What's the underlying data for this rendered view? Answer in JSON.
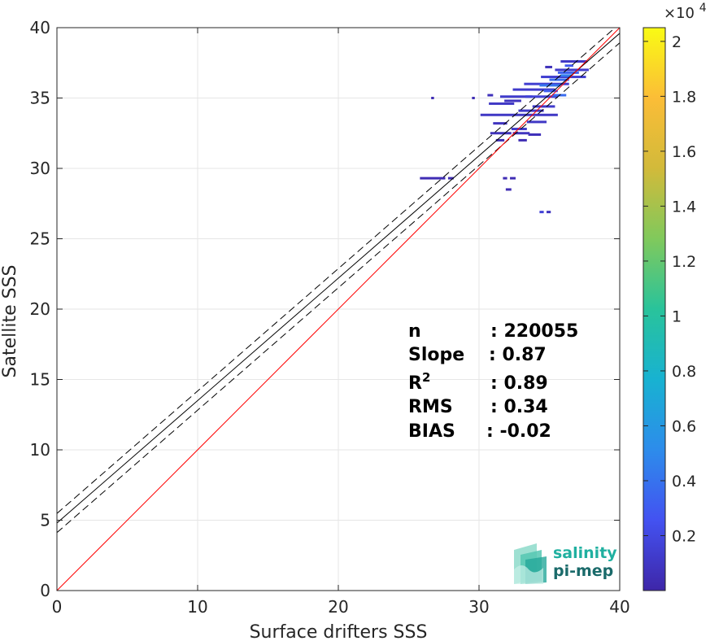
{
  "chart_data": {
    "type": "heatmap",
    "xlabel": "Surface drifters SSS",
    "ylabel": "Satellite SSS",
    "xlim": [
      0,
      40
    ],
    "ylim": [
      0,
      40
    ],
    "x_ticks": [
      "0",
      "10",
      "20",
      "30",
      "40"
    ],
    "y_ticks": [
      "0",
      "5",
      "10",
      "15",
      "20",
      "25",
      "30",
      "35",
      "40"
    ],
    "grid": true,
    "colorbar": {
      "range": [
        0,
        2.05
      ],
      "ticks": [
        "0.2",
        "0.4",
        "0.6",
        "0.8",
        "1",
        "1.2",
        "1.4",
        "1.6",
        "1.8",
        "2"
      ],
      "multiplier_base": "×10",
      "multiplier_exp": "4",
      "colormap": "parula",
      "colors": [
        "#3e26a8",
        "#4352f1",
        "#2d8ceb",
        "#18b2d1",
        "#29c39b",
        "#80c95c",
        "#d2ba3a",
        "#fbbd37",
        "#f9fb14"
      ]
    },
    "reference_line": {
      "slope": 1,
      "intercept": 0,
      "color": "#ff0000"
    },
    "fit_line": {
      "slope": 0.87,
      "intercept": 4.8,
      "color": "#000000"
    },
    "fit_bounds": [
      {
        "slope": 0.87,
        "intercept": 5.48,
        "color": "#000000",
        "dashed": true
      },
      {
        "slope": 0.87,
        "intercept": 4.12,
        "color": "#000000",
        "dashed": true
      }
    ],
    "density_segments": [
      {
        "x0": 25.8,
        "x1": 27.6,
        "y": 29.3,
        "level": 0.02
      },
      {
        "x0": 27.8,
        "x1": 28.2,
        "y": 29.3,
        "level": 0.02
      },
      {
        "x0": 31.7,
        "x1": 32.0,
        "y": 29.3,
        "level": 0.02
      },
      {
        "x0": 32.2,
        "x1": 32.6,
        "y": 29.3,
        "level": 0.02
      },
      {
        "x0": 31.9,
        "x1": 32.3,
        "y": 28.5,
        "level": 0.02
      },
      {
        "x0": 34.3,
        "x1": 34.6,
        "y": 26.9,
        "level": 0.08
      },
      {
        "x0": 34.8,
        "x1": 35.1,
        "y": 26.9,
        "level": 0.04
      },
      {
        "x0": 26.6,
        "x1": 26.8,
        "y": 35.0,
        "level": 0.02
      },
      {
        "x0": 29.5,
        "x1": 29.7,
        "y": 35.0,
        "level": 0.02
      },
      {
        "x0": 30.6,
        "x1": 31.0,
        "y": 35.2,
        "level": 0.03
      },
      {
        "x0": 31.5,
        "x1": 33.8,
        "y": 35.1,
        "level": 0.06
      },
      {
        "x0": 30.7,
        "x1": 32.5,
        "y": 34.6,
        "level": 0.05
      },
      {
        "x0": 31.8,
        "x1": 33.0,
        "y": 34.8,
        "level": 0.04
      },
      {
        "x0": 32.4,
        "x1": 35.4,
        "y": 35.6,
        "level": 0.06
      },
      {
        "x0": 33.2,
        "x1": 36.4,
        "y": 36.0,
        "level": 0.07
      },
      {
        "x0": 34.4,
        "x1": 37.6,
        "y": 36.5,
        "level": 0.07
      },
      {
        "x0": 35.4,
        "x1": 37.8,
        "y": 37.0,
        "level": 0.06
      },
      {
        "x0": 35.8,
        "x1": 37.7,
        "y": 37.6,
        "level": 0.05
      },
      {
        "x0": 34.7,
        "x1": 35.2,
        "y": 37.2,
        "level": 0.03
      },
      {
        "x0": 33.3,
        "x1": 35.6,
        "y": 35.1,
        "level": 0.08
      },
      {
        "x0": 33.8,
        "x1": 35.4,
        "y": 34.4,
        "level": 0.06
      },
      {
        "x0": 32.8,
        "x1": 34.6,
        "y": 34.1,
        "level": 0.05
      },
      {
        "x0": 30.1,
        "x1": 32.6,
        "y": 33.8,
        "level": 0.05
      },
      {
        "x0": 32.6,
        "x1": 35.6,
        "y": 33.8,
        "level": 0.05
      },
      {
        "x0": 33.4,
        "x1": 34.8,
        "y": 33.3,
        "level": 0.05
      },
      {
        "x0": 31.0,
        "x1": 32.0,
        "y": 33.2,
        "level": 0.04
      },
      {
        "x0": 32.3,
        "x1": 33.4,
        "y": 32.8,
        "level": 0.06
      },
      {
        "x0": 30.8,
        "x1": 32.3,
        "y": 32.5,
        "level": 0.03
      },
      {
        "x0": 32.4,
        "x1": 33.6,
        "y": 32.5,
        "level": 0.04
      },
      {
        "x0": 33.5,
        "x1": 34.4,
        "y": 32.4,
        "level": 0.03
      },
      {
        "x0": 31.2,
        "x1": 31.8,
        "y": 32.0,
        "level": 0.02
      },
      {
        "x0": 32.8,
        "x1": 33.4,
        "y": 32.0,
        "level": 0.02
      },
      {
        "x0": 34.3,
        "x1": 35.8,
        "y": 35.9,
        "level": 0.2
      },
      {
        "x0": 35.0,
        "x1": 36.4,
        "y": 36.3,
        "level": 0.18
      },
      {
        "x0": 35.6,
        "x1": 37.1,
        "y": 36.8,
        "level": 0.16
      },
      {
        "x0": 35.2,
        "x1": 36.2,
        "y": 35.2,
        "level": 0.18
      },
      {
        "x0": 34.6,
        "x1": 35.6,
        "y": 35.5,
        "level": 0.15
      },
      {
        "x0": 36.1,
        "x1": 36.7,
        "y": 37.3,
        "level": 0.14
      },
      {
        "x0": 35.8,
        "x1": 36.6,
        "y": 36.6,
        "level": 0.22
      }
    ],
    "stats": [
      {
        "label": "n",
        "value": ": 220055"
      },
      {
        "label": "Slope",
        "value": ": 0.87"
      },
      {
        "label": "R",
        "sup": "2",
        "value": ": 0.89"
      },
      {
        "label": "RMS",
        "value": ": 0.34"
      },
      {
        "label": "BIAS",
        "value": ": -0.02"
      }
    ]
  },
  "logo": {
    "line1": "salinity",
    "line2": "pi-mep",
    "color1": "#20b0a0",
    "color2": "#1a6a6a"
  }
}
